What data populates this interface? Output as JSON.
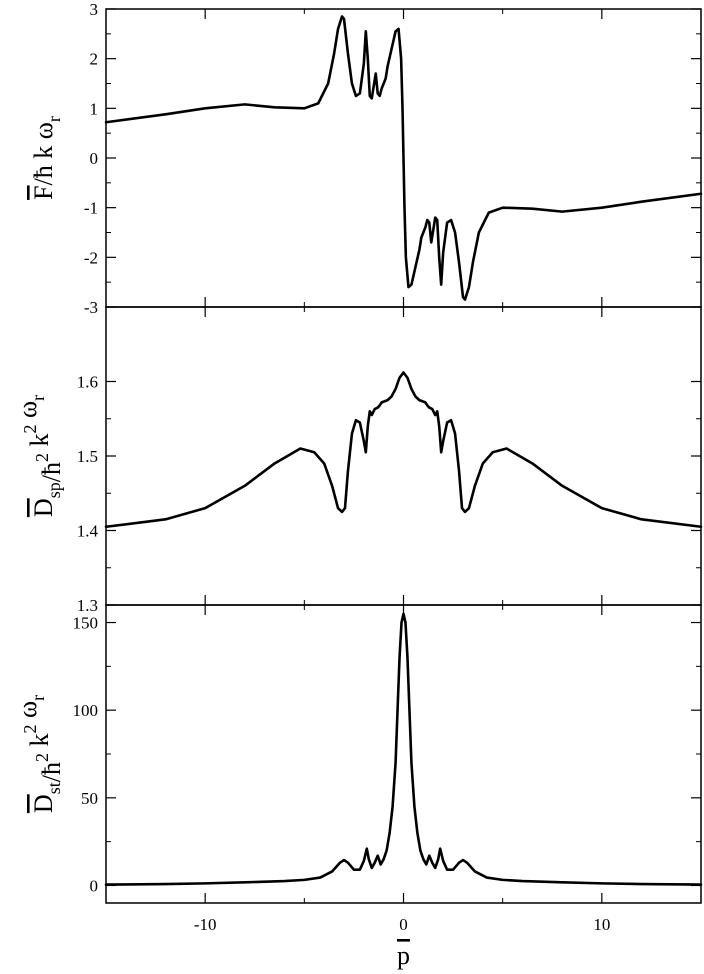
{
  "figure": {
    "xlabel_main": "p",
    "panel_labels": [
      {
        "main": "F",
        "rest": [
          [
            "t",
            "/ħ k ω"
          ],
          [
            "s",
            "r"
          ]
        ]
      },
      {
        "main": "D",
        "rest": [
          [
            "s",
            "sp"
          ],
          [
            "t",
            "/ħ"
          ],
          [
            "u",
            "2"
          ],
          [
            "t",
            " k"
          ],
          [
            "u",
            "2"
          ],
          [
            "t",
            " ω"
          ],
          [
            "s",
            "r"
          ]
        ]
      },
      {
        "main": "D",
        "rest": [
          [
            "s",
            "st"
          ],
          [
            "t",
            "/ħ"
          ],
          [
            "u",
            "2"
          ],
          [
            "t",
            " k"
          ],
          [
            "u",
            "2"
          ],
          [
            "t",
            " ω"
          ],
          [
            "s",
            "r"
          ]
        ]
      }
    ]
  },
  "chart_data": [
    {
      "type": "line",
      "ylabel": "F̄/ħ k ωr",
      "xlim": [
        -15,
        15
      ],
      "ylim": [
        -3,
        3
      ],
      "y_ticks": [
        -3,
        -2,
        -1,
        0,
        1,
        2,
        3
      ],
      "x_ticks": [
        -10,
        0,
        10
      ],
      "series": [
        {
          "x": [
            -15,
            -12,
            -10,
            -8,
            -6.5,
            -5,
            -4.3,
            -3.8,
            -3.5,
            -3.3,
            -3.1,
            -3.0,
            -2.8,
            -2.6,
            -2.4,
            -2.2,
            -2.0,
            -1.9,
            -1.8,
            -1.7,
            -1.6,
            -1.5,
            -1.4,
            -1.3,
            -1.2,
            -1.1,
            -1.0,
            -0.9,
            -0.8,
            -0.6,
            -0.4,
            -0.25,
            -0.12,
            -0.05,
            0.0,
            0.05,
            0.12,
            0.25,
            0.4,
            0.6,
            0.8,
            0.9,
            1.0,
            1.1,
            1.2,
            1.3,
            1.4,
            1.5,
            1.6,
            1.7,
            1.8,
            1.9,
            2.0,
            2.2,
            2.4,
            2.6,
            2.8,
            3.0,
            3.1,
            3.3,
            3.5,
            3.8,
            4.3,
            5,
            6.5,
            8,
            10,
            12,
            15
          ],
          "y": [
            0.72,
            0.88,
            1.0,
            1.08,
            1.02,
            1.0,
            1.1,
            1.5,
            2.1,
            2.6,
            2.85,
            2.8,
            2.1,
            1.5,
            1.25,
            1.3,
            1.9,
            2.55,
            2.0,
            1.25,
            1.2,
            1.45,
            1.7,
            1.3,
            1.25,
            1.4,
            1.5,
            1.6,
            1.85,
            2.2,
            2.55,
            2.6,
            2.0,
            1.0,
            0.0,
            -1.0,
            -2.0,
            -2.6,
            -2.55,
            -2.2,
            -1.85,
            -1.6,
            -1.5,
            -1.4,
            -1.25,
            -1.3,
            -1.7,
            -1.45,
            -1.2,
            -1.25,
            -2.0,
            -2.55,
            -1.9,
            -1.3,
            -1.25,
            -1.5,
            -2.1,
            -2.8,
            -2.85,
            -2.6,
            -2.1,
            -1.5,
            -1.1,
            -1.0,
            -1.02,
            -1.08,
            -1.0,
            -0.88,
            -0.72
          ]
        }
      ]
    },
    {
      "type": "line",
      "ylabel": "D̄sp/ħ2 k2 ωr",
      "xlim": [
        -15,
        15
      ],
      "ylim": [
        1.3,
        1.7
      ],
      "y_ticks": [
        1.3,
        1.4,
        1.5,
        1.6
      ],
      "x_ticks": [
        -10,
        0,
        10
      ],
      "series": [
        {
          "x": [
            -15,
            -12,
            -10,
            -8,
            -6.5,
            -5.2,
            -4.5,
            -4.0,
            -3.6,
            -3.3,
            -3.1,
            -2.95,
            -2.8,
            -2.6,
            -2.4,
            -2.2,
            -2.0,
            -1.9,
            -1.8,
            -1.7,
            -1.6,
            -1.45,
            -1.3,
            -1.2,
            -1.1,
            -1.0,
            -0.8,
            -0.6,
            -0.4,
            -0.2,
            0.0,
            0.2,
            0.4,
            0.6,
            0.8,
            1.0,
            1.1,
            1.2,
            1.3,
            1.45,
            1.6,
            1.7,
            1.8,
            1.9,
            2.0,
            2.2,
            2.4,
            2.6,
            2.8,
            2.95,
            3.1,
            3.3,
            3.6,
            4.0,
            4.5,
            5.2,
            6.5,
            8,
            10,
            12,
            15
          ],
          "y": [
            1.405,
            1.415,
            1.43,
            1.46,
            1.49,
            1.51,
            1.505,
            1.49,
            1.46,
            1.43,
            1.425,
            1.43,
            1.48,
            1.53,
            1.548,
            1.545,
            1.52,
            1.505,
            1.54,
            1.56,
            1.555,
            1.563,
            1.565,
            1.568,
            1.572,
            1.573,
            1.575,
            1.58,
            1.59,
            1.605,
            1.612,
            1.605,
            1.59,
            1.58,
            1.575,
            1.573,
            1.572,
            1.568,
            1.565,
            1.563,
            1.555,
            1.56,
            1.54,
            1.505,
            1.52,
            1.545,
            1.548,
            1.53,
            1.48,
            1.43,
            1.425,
            1.43,
            1.46,
            1.49,
            1.505,
            1.51,
            1.49,
            1.46,
            1.43,
            1.415,
            1.405
          ]
        }
      ]
    },
    {
      "type": "line",
      "ylabel": "D̄st/ħ2 k2 ωr",
      "xlim": [
        -15,
        15
      ],
      "ylim": [
        -10,
        160
      ],
      "y_ticks": [
        0,
        50,
        100,
        150
      ],
      "x_ticks": [
        -10,
        0,
        10
      ],
      "series": [
        {
          "x": [
            -15,
            -12,
            -10,
            -8,
            -6,
            -5,
            -4.2,
            -3.6,
            -3.2,
            -3.0,
            -2.8,
            -2.5,
            -2.2,
            -2.0,
            -1.85,
            -1.75,
            -1.6,
            -1.45,
            -1.3,
            -1.15,
            -1.0,
            -0.85,
            -0.7,
            -0.55,
            -0.4,
            -0.3,
            -0.2,
            -0.1,
            0.0,
            0.1,
            0.2,
            0.3,
            0.4,
            0.55,
            0.7,
            0.85,
            1.0,
            1.15,
            1.3,
            1.45,
            1.6,
            1.75,
            1.85,
            2.0,
            2.2,
            2.5,
            2.8,
            3.0,
            3.2,
            3.6,
            4.2,
            5,
            6,
            8,
            10,
            12,
            15
          ],
          "y": [
            0.5,
            0.8,
            1.2,
            1.8,
            2.5,
            3.2,
            4.5,
            8,
            13,
            14.5,
            13,
            9,
            9,
            14,
            21,
            15,
            10,
            13,
            17,
            12,
            15,
            20,
            30,
            45,
            70,
            100,
            130,
            150,
            155,
            150,
            130,
            100,
            70,
            45,
            30,
            20,
            15,
            12,
            17,
            13,
            10,
            15,
            21,
            14,
            9,
            9,
            13,
            14.5,
            13,
            8,
            4.5,
            3.2,
            2.5,
            1.8,
            1.2,
            0.8,
            0.5
          ]
        }
      ]
    }
  ]
}
